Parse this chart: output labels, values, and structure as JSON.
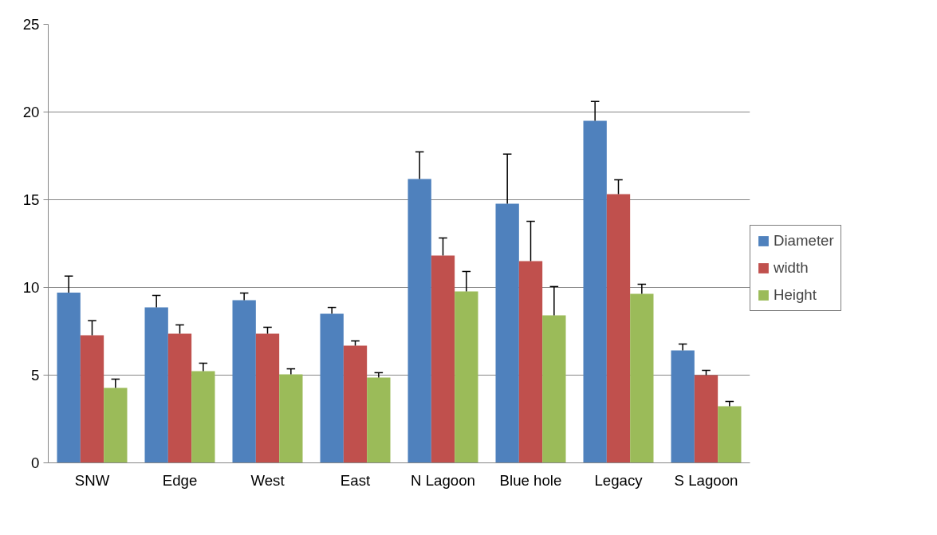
{
  "chart_data": {
    "type": "bar",
    "categories": [
      "SNW",
      "Edge",
      "West",
      "East",
      "N Lagoon",
      "Blue hole",
      "Legacy",
      "S Lagoon"
    ],
    "series": [
      {
        "name": "Diameter",
        "color": "#4f81bd",
        "values": [
          9.7,
          8.86,
          9.27,
          8.5,
          16.18,
          14.77,
          19.5,
          6.41
        ],
        "errors": [
          [
            9.7,
            10.65
          ],
          [
            8.86,
            9.55
          ],
          [
            9.27,
            9.68
          ],
          [
            8.5,
            8.86
          ],
          [
            16.18,
            17.73
          ],
          [
            14.77,
            17.6
          ],
          [
            19.5,
            20.6
          ],
          [
            6.41,
            6.77
          ]
        ]
      },
      {
        "name": "width",
        "color": "#c0504d",
        "values": [
          7.27,
          7.36,
          7.36,
          6.68,
          11.82,
          11.5,
          15.32,
          5.0
        ],
        "errors": [
          [
            7.27,
            8.1
          ],
          [
            7.36,
            7.86
          ],
          [
            7.36,
            7.73
          ],
          [
            6.68,
            6.95
          ],
          [
            11.82,
            12.82
          ],
          [
            11.5,
            13.77
          ],
          [
            15.32,
            16.14
          ],
          [
            5.0,
            5.27
          ]
        ]
      },
      {
        "name": "Height",
        "color": "#9bbb59",
        "values": [
          4.27,
          5.23,
          5.05,
          4.86,
          9.77,
          8.41,
          9.64,
          3.23
        ],
        "errors": [
          [
            4.27,
            4.77
          ],
          [
            5.23,
            5.68
          ],
          [
            5.05,
            5.36
          ],
          [
            4.86,
            5.14
          ],
          [
            9.77,
            10.91
          ],
          [
            8.41,
            10.05
          ],
          [
            9.64,
            10.18
          ],
          [
            3.23,
            3.5
          ]
        ]
      }
    ],
    "ylim": [
      0,
      25
    ],
    "yticks": [
      0,
      5,
      10,
      15,
      20,
      25
    ],
    "grid": "y",
    "legend": "right"
  }
}
